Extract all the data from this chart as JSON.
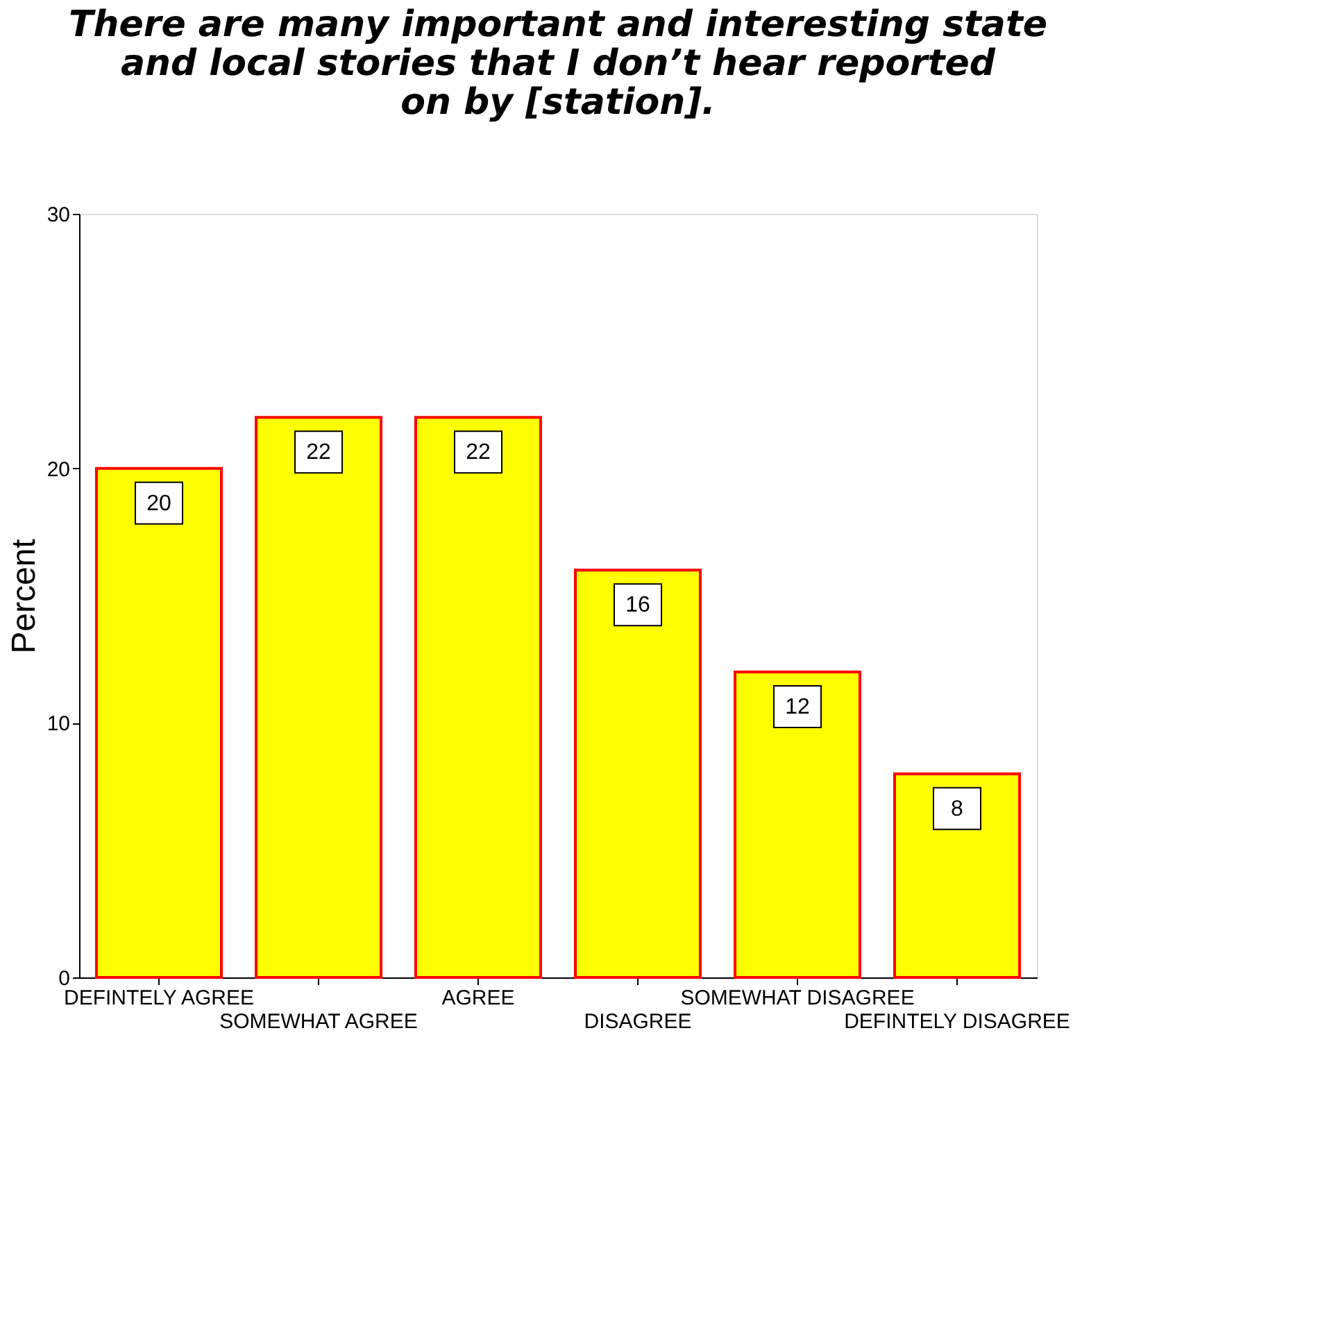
{
  "chart_data": {
    "type": "bar",
    "title": "There are many important and interesting state and local stories that I don’t hear reported on by [station].",
    "categories": [
      "DEFINTELY AGREE",
      "SOMEWHAT AGREE",
      "AGREE",
      "DISAGREE",
      "SOMEWHAT DISAGREE",
      "DEFINTELY DISAGREE"
    ],
    "values": [
      20,
      22,
      22,
      16,
      12,
      8
    ],
    "color": "#ffff00",
    "ylabel": "Percent",
    "ylim": [
      0,
      30
    ],
    "yticks": [
      0,
      10,
      20,
      30
    ],
    "grid": false,
    "data_labels": true
  }
}
